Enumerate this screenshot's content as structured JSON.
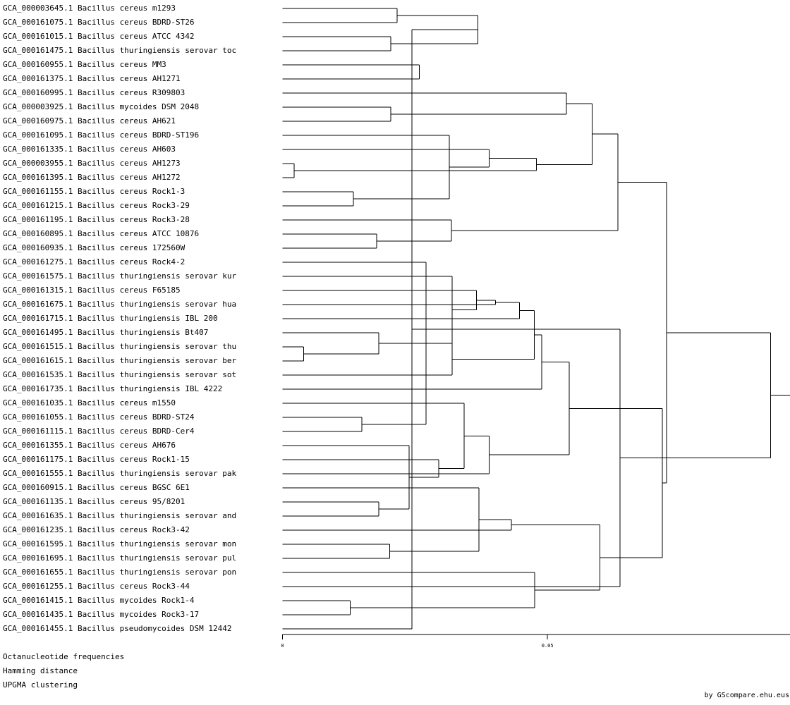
{
  "dendrogram": {
    "leaves": [
      "GCA_000003645.1 Bacillus cereus m1293",
      "GCA_000161075.1 Bacillus cereus BDRD-ST26",
      "GCA_000161015.1 Bacillus cereus ATCC 4342",
      "GCA_000161475.1 Bacillus thuringiensis serovar toc",
      "GCA_000160955.1 Bacillus cereus MM3",
      "GCA_000161375.1 Bacillus cereus AH1271",
      "GCA_000160995.1 Bacillus cereus R309803",
      "GCA_000003925.1 Bacillus mycoides DSM 2048",
      "GCA_000160975.1 Bacillus cereus AH621",
      "GCA_000161095.1 Bacillus cereus BDRD-ST196",
      "GCA_000161335.1 Bacillus cereus AH603",
      "GCA_000003955.1 Bacillus cereus AH1273",
      "GCA_000161395.1 Bacillus cereus AH1272",
      "GCA_000161155.1 Bacillus cereus Rock1-3",
      "GCA_000161215.1 Bacillus cereus Rock3-29",
      "GCA_000161195.1 Bacillus cereus Rock3-28",
      "GCA_000160895.1 Bacillus cereus ATCC 10876",
      "GCA_000160935.1 Bacillus cereus 172560W",
      "GCA_000161275.1 Bacillus cereus Rock4-2",
      "GCA_000161575.1 Bacillus thuringiensis serovar kur",
      "GCA_000161315.1 Bacillus cereus F65185",
      "GCA_000161675.1 Bacillus thuringiensis serovar hua",
      "GCA_000161715.1 Bacillus thuringiensis IBL 200",
      "GCA_000161495.1 Bacillus thuringiensis Bt407",
      "GCA_000161515.1 Bacillus thuringiensis serovar thu",
      "GCA_000161615.1 Bacillus thuringiensis serovar ber",
      "GCA_000161535.1 Bacillus thuringiensis serovar sot",
      "GCA_000161735.1 Bacillus thuringiensis IBL 4222",
      "GCA_000161035.1 Bacillus cereus m1550",
      "GCA_000161055.1 Bacillus cereus BDRD-ST24",
      "GCA_000161115.1 Bacillus cereus BDRD-Cer4",
      "GCA_000161355.1 Bacillus cereus AH676",
      "GCA_000161175.1 Bacillus cereus Rock1-15",
      "GCA_000161555.1 Bacillus thuringiensis serovar pak",
      "GCA_000160915.1 Bacillus cereus BGSC 6E1",
      "GCA_000161135.1 Bacillus cereus 95/8201",
      "GCA_000161635.1 Bacillus thuringiensis serovar and",
      "GCA_000161235.1 Bacillus cereus Rock3-42",
      "GCA_000161595.1 Bacillus thuringiensis serovar mon",
      "GCA_000161695.1 Bacillus thuringiensis serovar pul",
      "GCA_000161655.1 Bacillus thuringiensis serovar pon",
      "GCA_000161255.1 Bacillus cereus Rock3-44",
      "GCA_000161415.1 Bacillus mycoides Rock1-4",
      "GCA_000161435.1 Bacillus mycoides Rock3-17",
      "GCA_000161455.1 Bacillus pseudomycoides DSM 12442"
    ],
    "merges": [
      {
        "a": 0,
        "b": 1,
        "h": 0.0216
      },
      {
        "a": 2,
        "b": 3,
        "h": 0.0204
      },
      {
        "a": 4,
        "b": 5,
        "h": 0.0258
      },
      {
        "a": 7,
        "b": 8,
        "h": 0.0204
      },
      {
        "a": 11,
        "b": 12,
        "h": 0.0022
      },
      {
        "a": 13,
        "b": 14,
        "h": 0.0134
      },
      {
        "a": 16,
        "b": 17,
        "h": 0.0178
      },
      {
        "a": 24,
        "b": 25,
        "h": 0.004
      },
      {
        "a": 29,
        "b": 30,
        "h": 0.015
      },
      {
        "a": 35,
        "b": 36,
        "h": 0.0182
      },
      {
        "a": 38,
        "b": 39,
        "h": 0.0202
      },
      {
        "a": 42,
        "b": 43,
        "h": 0.0128
      },
      {
        "a": 45,
        "b": 46,
        "h": 0.0369
      },
      {
        "a": 50,
        "b": 9,
        "h": 0.0315
      },
      {
        "a": 58,
        "b": 10,
        "h": 0.039
      },
      {
        "a": 51,
        "b": 15,
        "h": 0.0319
      },
      {
        "a": 53,
        "b": 18,
        "h": 0.0271
      },
      {
        "a": 61,
        "b": 19,
        "h": 0.032
      },
      {
        "a": 62,
        "b": 20,
        "h": 0.0366
      },
      {
        "a": 63,
        "b": 21,
        "h": 0.0402
      },
      {
        "a": 64,
        "b": 22,
        "h": 0.0447
      },
      {
        "a": 23,
        "b": 52,
        "h": 0.0182
      },
      {
        "a": 66,
        "b": 26,
        "h": 0.032
      },
      {
        "a": 65,
        "b": 67,
        "h": 0.0475
      },
      {
        "a": 68,
        "b": 27,
        "h": 0.0489
      },
      {
        "a": 31,
        "b": 54,
        "h": 0.0239
      },
      {
        "a": 70,
        "b": 32,
        "h": 0.0295
      },
      {
        "a": 28,
        "b": 71,
        "h": 0.0343
      },
      {
        "a": 72,
        "b": 33,
        "h": 0.039
      },
      {
        "a": 34,
        "b": 55,
        "h": 0.0371
      },
      {
        "a": 74,
        "b": 37,
        "h": 0.0432
      },
      {
        "a": 56,
        "b": 40,
        "h": 0.0476
      },
      {
        "a": 69,
        "b": 73,
        "h": 0.0541
      },
      {
        "a": 75,
        "b": 76,
        "h": 0.0599
      },
      {
        "a": 59,
        "b": 49,
        "h": 0.0479
      },
      {
        "a": 48,
        "b": 6,
        "h": 0.0536
      },
      {
        "a": 80,
        "b": 79,
        "h": 0.0584
      },
      {
        "a": 81,
        "b": 60,
        "h": 0.0633
      },
      {
        "a": 77,
        "b": 78,
        "h": 0.0717
      },
      {
        "a": 57,
        "b": 44,
        "h": 0.0244
      },
      {
        "a": 41,
        "b": 84,
        "h": 0.0637
      },
      {
        "a": 82,
        "b": 83,
        "h": 0.0725
      },
      {
        "a": 86,
        "b": 85,
        "h": 0.0921
      }
    ],
    "axis": {
      "min": 0,
      "max": 0.0955,
      "ticks": [
        {
          "value": 0,
          "label": "0"
        },
        {
          "value": 0.05,
          "label": "0.05"
        }
      ]
    },
    "footer_lines": [
      "Octanucleotide frequencies",
      "Hamming distance",
      "UPGMA clustering"
    ],
    "credit": "by GScompare.ehu.eus"
  }
}
